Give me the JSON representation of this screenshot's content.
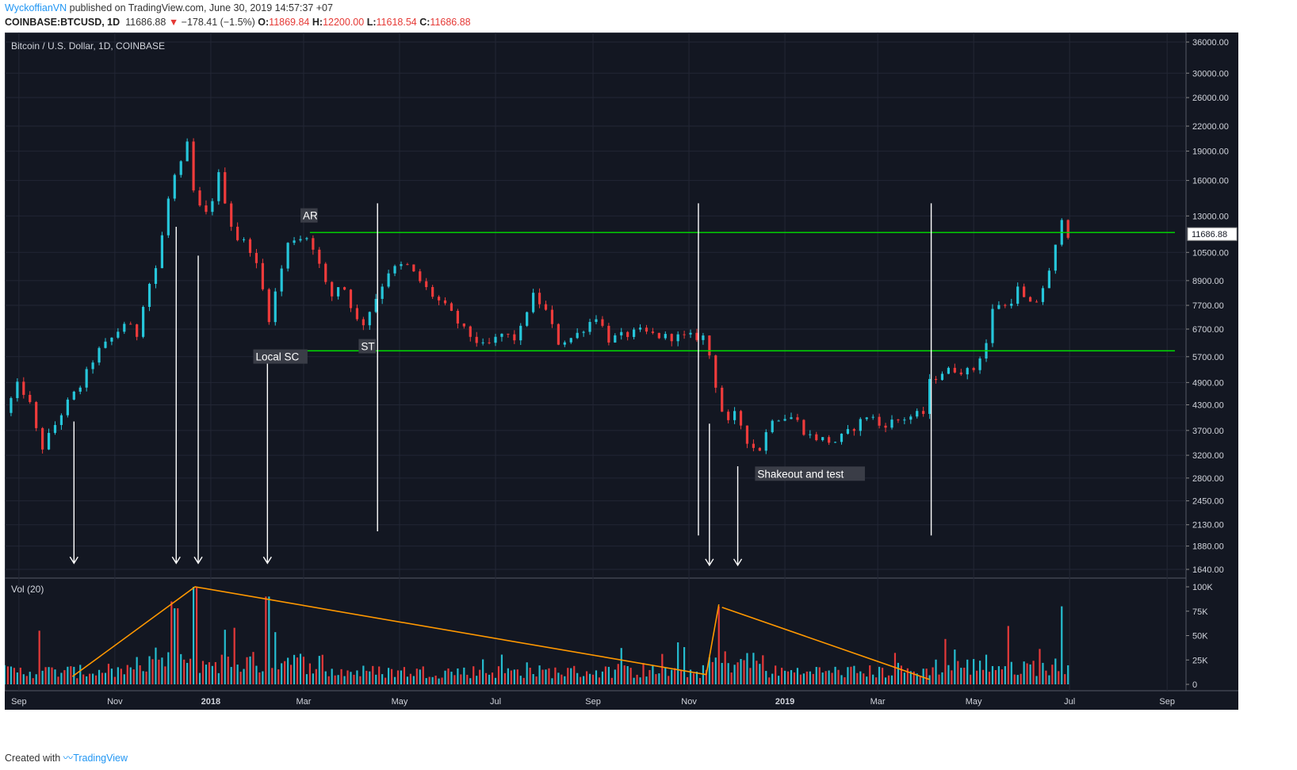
{
  "header": {
    "author": "WyckoffianVN",
    "published": "published on TradingView.com, June 30, 2019 14:57:37 +07",
    "symbol": "COINBASE:BTCUSD, 1D",
    "last": "11686.88",
    "change": "−178.41 (−1.5%)",
    "o_label": "O:",
    "o_val": "11869.84",
    "h_label": "H:",
    "h_val": "12200.00",
    "l_label": "L:",
    "l_val": "11618.54",
    "c_label": "C:",
    "c_val": "11686.88"
  },
  "footer": {
    "prefix": "Created with",
    "brand": "TradingView"
  },
  "colors": {
    "background": "#131722",
    "grid": "#232735",
    "up": "#26c6da",
    "down": "#ef3b3b",
    "level": "#00e000",
    "trend": "#ff9800",
    "marker": "#ffffff",
    "axis_text": "#d1d4dc"
  },
  "chart_data": {
    "type": "candlestick",
    "title": "Bitcoin / U.S. Dollar, 1D, COINBASE",
    "scale": "log",
    "ylim": [
      1640,
      36000
    ],
    "y_ticks": [
      1640,
      1880,
      2130,
      2450,
      2800,
      3200,
      3700,
      4300,
      4900,
      5700,
      6700,
      7700,
      8900,
      10500,
      13000,
      16000,
      19000,
      22000,
      26000,
      30000,
      36000
    ],
    "y_tick_labels": [
      "1640.00",
      "1880.00",
      "2130.00",
      "2450.00",
      "2800.00",
      "3200.00",
      "3700.00",
      "4300.00",
      "4900.00",
      "5700.00",
      "6700.00",
      "7700.00",
      "8900.00",
      "10500.00",
      "13000.00",
      "16000.00",
      "19000.00",
      "22000.00",
      "26000.00",
      "30000.00",
      "36000.00"
    ],
    "x_range": [
      "2017-08-23",
      "2019-09-13"
    ],
    "x_ticks": [
      {
        "date": "2017-09-01",
        "label": "Sep",
        "bold": false
      },
      {
        "date": "2017-11-01",
        "label": "Nov",
        "bold": false
      },
      {
        "date": "2018-01-01",
        "label": "2018",
        "bold": true
      },
      {
        "date": "2018-03-01",
        "label": "Mar",
        "bold": false
      },
      {
        "date": "2018-05-01",
        "label": "May",
        "bold": false
      },
      {
        "date": "2018-07-01",
        "label": "Jul",
        "bold": false
      },
      {
        "date": "2018-09-01",
        "label": "Sep",
        "bold": false
      },
      {
        "date": "2018-11-01",
        "label": "Nov",
        "bold": false
      },
      {
        "date": "2019-01-01",
        "label": "2019",
        "bold": true
      },
      {
        "date": "2019-03-01",
        "label": "Mar",
        "bold": false
      },
      {
        "date": "2019-05-01",
        "label": "May",
        "bold": false
      },
      {
        "date": "2019-07-01",
        "label": "Jul",
        "bold": false
      },
      {
        "date": "2019-09-01",
        "label": "Sep",
        "bold": false
      }
    ],
    "last_price_label": "11686.88",
    "price_path": [
      [
        "2017-08-23",
        4100
      ],
      [
        "2017-09-01",
        4900
      ],
      [
        "2017-09-08",
        4300
      ],
      [
        "2017-09-15",
        3300
      ],
      [
        "2017-09-22",
        3700
      ],
      [
        "2017-10-01",
        4300
      ],
      [
        "2017-10-10",
        4800
      ],
      [
        "2017-10-20",
        5800
      ],
      [
        "2017-10-31",
        6400
      ],
      [
        "2017-11-10",
        7200
      ],
      [
        "2017-11-13",
        5900
      ],
      [
        "2017-11-20",
        8200
      ],
      [
        "2017-11-28",
        9800
      ],
      [
        "2017-12-07",
        16000
      ],
      [
        "2017-12-12",
        17000
      ],
      [
        "2017-12-17",
        19700
      ],
      [
        "2017-12-22",
        14000
      ],
      [
        "2017-12-30",
        13000
      ],
      [
        "2018-01-06",
        16500
      ],
      [
        "2018-01-16",
        11500
      ],
      [
        "2018-01-25",
        11000
      ],
      [
        "2018-02-02",
        9000
      ],
      [
        "2018-02-06",
        6900
      ],
      [
        "2018-02-12",
        8600
      ],
      [
        "2018-02-20",
        11400
      ],
      [
        "2018-03-05",
        11500
      ],
      [
        "2018-03-18",
        8000
      ],
      [
        "2018-03-25",
        8900
      ],
      [
        "2018-04-06",
        6700
      ],
      [
        "2018-04-15",
        7900
      ],
      [
        "2018-04-24",
        9400
      ],
      [
        "2018-05-05",
        9800
      ],
      [
        "2018-05-20",
        8300
      ],
      [
        "2018-06-01",
        7500
      ],
      [
        "2018-06-10",
        6700
      ],
      [
        "2018-06-24",
        6000
      ],
      [
        "2018-07-05",
        6500
      ],
      [
        "2018-07-15",
        6300
      ],
      [
        "2018-07-24",
        8200
      ],
      [
        "2018-08-01",
        7600
      ],
      [
        "2018-08-10",
        6200
      ],
      [
        "2018-08-20",
        6400
      ],
      [
        "2018-09-04",
        7300
      ],
      [
        "2018-09-10",
        6300
      ],
      [
        "2018-10-01",
        6600
      ],
      [
        "2018-10-15",
        6400
      ],
      [
        "2018-11-10",
        6400
      ],
      [
        "2018-11-15",
        5600
      ],
      [
        "2018-11-20",
        4400
      ],
      [
        "2018-11-25",
        3800
      ],
      [
        "2018-12-01",
        4100
      ],
      [
        "2018-12-08",
        3500
      ],
      [
        "2018-12-15",
        3250
      ],
      [
        "2018-12-24",
        4000
      ],
      [
        "2019-01-07",
        4000
      ],
      [
        "2019-01-15",
        3600
      ],
      [
        "2019-02-01",
        3450
      ],
      [
        "2019-02-10",
        3650
      ],
      [
        "2019-02-24",
        4100
      ],
      [
        "2019-03-01",
        3800
      ],
      [
        "2019-03-20",
        4000
      ],
      [
        "2019-03-31",
        4100
      ],
      [
        "2019-04-03",
        4900
      ],
      [
        "2019-04-10",
        5200
      ],
      [
        "2019-04-20",
        5300
      ],
      [
        "2019-04-30",
        5200
      ],
      [
        "2019-05-10",
        6300
      ],
      [
        "2019-05-14",
        7900
      ],
      [
        "2019-05-22",
        7600
      ],
      [
        "2019-05-30",
        8600
      ],
      [
        "2019-06-04",
        7600
      ],
      [
        "2019-06-10",
        7900
      ],
      [
        "2019-06-18",
        9300
      ],
      [
        "2019-06-22",
        10800
      ],
      [
        "2019-06-26",
        13000
      ],
      [
        "2019-06-28",
        12300
      ],
      [
        "2019-06-30",
        11687
      ]
    ],
    "levels": [
      {
        "name": "AR level",
        "price": 11800,
        "from": "2018-03-05",
        "to": "2019-09-13"
      },
      {
        "name": "ST level",
        "price": 5900,
        "from": "2018-02-06",
        "to": "2019-09-13"
      }
    ],
    "vertical_lines": [
      {
        "date": "2018-04-17",
        "from": 14000,
        "to": 2050
      },
      {
        "date": "2018-11-07",
        "from": 14000,
        "to": 2000
      },
      {
        "date": "2019-04-04",
        "from": 14000,
        "to": 2000
      }
    ],
    "arrows": [
      {
        "date": "2017-10-06",
        "from": 3900,
        "to": 1700
      },
      {
        "date": "2017-12-10",
        "from": 12200,
        "to": 1700
      },
      {
        "date": "2017-12-24",
        "from": 10300,
        "to": 1700
      },
      {
        "date": "2018-02-06",
        "from": 5500,
        "to": 1700
      },
      {
        "date": "2018-11-14",
        "from": 3850,
        "to": 1680
      },
      {
        "date": "2018-12-02",
        "from": 3000,
        "to": 1680
      }
    ],
    "annotations": [
      {
        "text": "AR",
        "date": "2018-02-27",
        "price": 12800
      },
      {
        "text": "Local SC",
        "date": "2018-01-28",
        "price": 5600
      },
      {
        "text": "ST",
        "date": "2018-04-05",
        "price": 5950
      },
      {
        "text": "Shakeout and test",
        "date": "2018-12-13",
        "price": 2820
      }
    ],
    "volume": {
      "label": "Vol (20)",
      "ylim": [
        0,
        100000
      ],
      "y_ticks": [
        0,
        25000,
        50000,
        75000,
        100000
      ],
      "y_tick_labels": [
        "0",
        "25K",
        "50K",
        "75K",
        "100K"
      ],
      "spikes": [
        [
          "2017-09-14",
          55000
        ],
        [
          "2017-12-07",
          85000
        ],
        [
          "2017-12-10",
          78000
        ],
        [
          "2017-12-22",
          100000
        ],
        [
          "2018-01-16",
          58000
        ],
        [
          "2018-02-06",
          90000
        ],
        [
          "2018-11-20",
          80000
        ],
        [
          "2019-06-26",
          80000
        ]
      ],
      "trend_lines": [
        [
          [
            "2017-10-05",
            8000
          ],
          [
            "2017-12-22",
            100000
          ],
          [
            "2018-11-12",
            10000
          ]
        ],
        [
          [
            "2018-11-12",
            10000
          ],
          [
            "2018-11-20",
            82000
          ]
        ],
        [
          [
            "2018-11-22",
            79000
          ],
          [
            "2019-04-03",
            5000
          ]
        ]
      ]
    }
  }
}
